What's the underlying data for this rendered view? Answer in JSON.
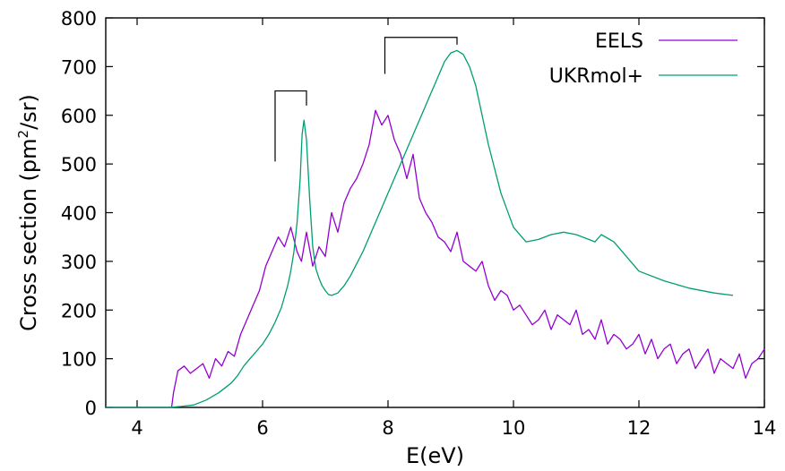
{
  "chart_data": {
    "type": "line",
    "title": "",
    "xlabel": "E(eV)",
    "ylabel_main": "Cross section (pm",
    "ylabel_sup": "2",
    "ylabel_tail": "/sr)",
    "xlim": [
      3.5,
      14
    ],
    "ylim": [
      0,
      800
    ],
    "xticks": [
      "4",
      "6",
      "8",
      "10",
      "12",
      "14"
    ],
    "xtick_values": [
      4,
      6,
      8,
      10,
      12,
      14
    ],
    "yticks": [
      "0",
      "100",
      "200",
      "300",
      "400",
      "500",
      "600",
      "700",
      "800"
    ],
    "ytick_values": [
      0,
      100,
      200,
      300,
      400,
      500,
      600,
      700,
      800
    ],
    "grid": false,
    "legend_position": "top-right",
    "series": [
      {
        "name": "EELS",
        "color": "#9400d3",
        "x": [
          3.5,
          4.55,
          4.58,
          4.65,
          4.75,
          4.85,
          4.95,
          5.05,
          5.15,
          5.25,
          5.35,
          5.45,
          5.55,
          5.65,
          5.75,
          5.85,
          5.95,
          6.05,
          6.15,
          6.25,
          6.35,
          6.45,
          6.55,
          6.62,
          6.7,
          6.8,
          6.9,
          7.0,
          7.1,
          7.2,
          7.3,
          7.4,
          7.5,
          7.6,
          7.7,
          7.8,
          7.9,
          8.0,
          8.1,
          8.2,
          8.3,
          8.4,
          8.5,
          8.6,
          8.7,
          8.8,
          8.9,
          9.0,
          9.1,
          9.2,
          9.3,
          9.4,
          9.5,
          9.6,
          9.7,
          9.8,
          9.9,
          10.0,
          10.1,
          10.2,
          10.3,
          10.4,
          10.5,
          10.6,
          10.7,
          10.8,
          10.9,
          11.0,
          11.1,
          11.2,
          11.3,
          11.4,
          11.5,
          11.6,
          11.7,
          11.8,
          11.9,
          12.0,
          12.1,
          12.2,
          12.3,
          12.4,
          12.5,
          12.6,
          12.7,
          12.8,
          12.9,
          13.0,
          13.1,
          13.2,
          13.3,
          13.4,
          13.5,
          13.6,
          13.7,
          13.8,
          13.9,
          14.0
        ],
        "y": [
          0,
          0,
          30,
          75,
          85,
          70,
          80,
          90,
          60,
          100,
          85,
          115,
          105,
          150,
          180,
          210,
          240,
          290,
          320,
          350,
          330,
          370,
          320,
          300,
          360,
          290,
          330,
          310,
          400,
          360,
          420,
          450,
          470,
          500,
          540,
          610,
          580,
          600,
          550,
          520,
          470,
          520,
          430,
          400,
          380,
          350,
          340,
          320,
          360,
          300,
          290,
          280,
          300,
          250,
          220,
          240,
          230,
          200,
          210,
          190,
          170,
          180,
          200,
          160,
          190,
          180,
          170,
          200,
          150,
          160,
          140,
          180,
          130,
          150,
          140,
          120,
          130,
          150,
          110,
          140,
          100,
          120,
          130,
          90,
          110,
          120,
          80,
          100,
          120,
          70,
          100,
          90,
          80,
          110,
          60,
          90,
          100,
          120
        ]
      },
      {
        "name": "UKRmol+",
        "color": "#009e73",
        "x": [
          3.5,
          4.5,
          4.7,
          4.9,
          5.1,
          5.3,
          5.5,
          5.6,
          5.7,
          5.8,
          5.9,
          6.0,
          6.1,
          6.2,
          6.3,
          6.4,
          6.45,
          6.5,
          6.55,
          6.6,
          6.63,
          6.66,
          6.7,
          6.75,
          6.8,
          6.85,
          6.9,
          6.95,
          7.0,
          7.05,
          7.1,
          7.2,
          7.3,
          7.4,
          7.5,
          7.6,
          7.7,
          7.8,
          7.9,
          8.0,
          8.2,
          8.4,
          8.6,
          8.8,
          8.9,
          9.0,
          9.1,
          9.2,
          9.3,
          9.4,
          9.5,
          9.6,
          9.8,
          10.0,
          10.2,
          10.4,
          10.6,
          10.8,
          11.0,
          11.2,
          11.3,
          11.4,
          11.6,
          11.8,
          12.0,
          12.4,
          12.8,
          13.2,
          13.5
        ],
        "y": [
          0,
          0,
          2,
          5,
          15,
          30,
          50,
          65,
          85,
          100,
          115,
          130,
          150,
          175,
          205,
          250,
          280,
          320,
          380,
          470,
          560,
          590,
          550,
          430,
          330,
          285,
          265,
          250,
          240,
          232,
          230,
          235,
          250,
          270,
          295,
          320,
          350,
          380,
          410,
          440,
          500,
          560,
          620,
          680,
          710,
          728,
          733,
          725,
          700,
          660,
          600,
          540,
          440,
          370,
          340,
          345,
          355,
          360,
          355,
          345,
          340,
          355,
          340,
          310,
          280,
          260,
          245,
          235,
          230
        ]
      }
    ],
    "annotations": [
      {
        "type": "bracket",
        "x1": 6.2,
        "x2": 6.7,
        "y_top": 650,
        "y_left_bottom": 505,
        "y_right_bottom": 620
      },
      {
        "type": "bracket",
        "x1": 7.95,
        "x2": 9.1,
        "y_top": 760,
        "y_left_bottom": 685,
        "y_right_bottom": 745
      }
    ]
  }
}
